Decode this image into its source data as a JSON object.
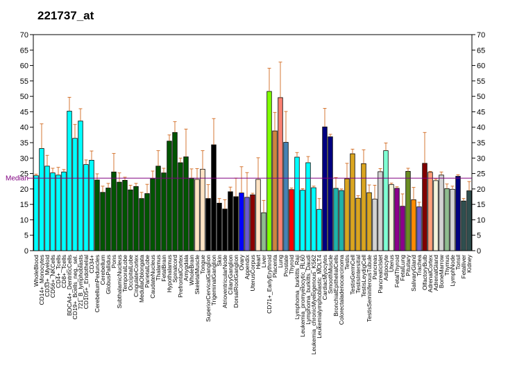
{
  "chart_data": {
    "type": "bar",
    "title": "221737_at",
    "ylim": [
      0,
      70
    ],
    "yticks": [
      0,
      5,
      10,
      15,
      20,
      25,
      30,
      35,
      40,
      45,
      50,
      55,
      60,
      65,
      70
    ],
    "median_label": "Median",
    "median_value": 23.5,
    "median_color": "#800080",
    "grid": false,
    "categories": [
      "WholeBlood",
      "CD14+_Monocytes",
      "CD33+_Myeloid",
      "CD56+_NKCells",
      "CD4+_Tcells",
      "CD8+_Tcells",
      "BDCA4+_DentriticCells",
      "CD19+_Bcells_neg._sel.",
      "721_B_lymphoblasts",
      "CD105+_Endothelial",
      "CD34+",
      "CerebellumPeduncles",
      "Cerebellum",
      "GlobusPallidus",
      "Pons",
      "SubthalamicNucleus",
      "TemporalLobe",
      "OccipitalLobe",
      "CingulateCortex",
      "MedullaOblongata",
      "ParietalLobe",
      "CaudateNucleus",
      "Thalamus",
      "FetalBrain",
      "Hypothalamus",
      "Spinalcord",
      "PrefrontalCortex",
      "Amygdala",
      "WholeBrain",
      "SkeletalMuscle",
      "Tongue",
      "SuperiorCervicalGanglion",
      "TrigeminalGanglion",
      "Skin",
      "AtrioventricularNode",
      "CiliaryGanglion",
      "DorsalRootGanglion",
      "Ovary",
      "Appendix",
      "UterusCorpus",
      "Heart",
      "Liver",
      "CD71+_EarlyErythroid",
      "Placenta",
      "Lung",
      "Prostate",
      "Thyroid",
      "Lymphoma_burkitts_Raji",
      "Leukemia_promyelocytic_HL60",
      "Lymphoma_burkitts_Daudi",
      "Leukemia_chronicMyelogenous_K562",
      "Leukemialymphoblastic_MOLT4",
      "CardiacMyocytes",
      "SmoothMuscle",
      "BronchialEpithelialCells",
      "Colorectaladenocarcinoma",
      "Testis",
      "TestisGermCell",
      "TestisIntersitial",
      "TestisLeydigCell",
      "TestisSeminiferousTubule",
      "Pancreas",
      "PancreaticIslet",
      "Adipocyte",
      "Uterus",
      "FetalThyroid",
      "FetalLung",
      "Pituitary",
      "SalivaryGland",
      "Trachea",
      "OlfactoryBulb",
      "AdrenalCortex",
      "AdrenalGland",
      "BoneMarrow",
      "Thymus",
      "LymphNode",
      "Tonsil",
      "Fetalliver",
      "Kidney"
    ],
    "values": [
      24.3,
      33.1,
      27.4,
      25.2,
      24.5,
      25.5,
      45.2,
      36.4,
      42.0,
      27.9,
      29.3,
      22.9,
      18.9,
      20.3,
      25.5,
      22.2,
      22.8,
      19.7,
      20.8,
      16.9,
      18.5,
      23.3,
      27.4,
      25.2,
      35.5,
      38.3,
      28.5,
      30.4,
      23.5,
      23.1,
      26.4,
      16.9,
      34.3,
      15.4,
      13.5,
      19.1,
      17.5,
      18.7,
      17.3,
      18.1,
      23.1,
      12.3,
      51.6,
      38.8,
      49.6,
      35.1,
      19.8,
      30.3,
      19.6,
      28.5,
      20.4,
      13.4,
      40.1,
      36.9,
      20.2,
      19.5,
      23.3,
      31.4,
      17.0,
      28.2,
      18.8,
      16.7,
      25.6,
      32.4,
      21.4,
      20.2,
      14.4,
      25.7,
      16.5,
      14.2,
      28.3,
      25.4,
      22.7,
      24.5,
      20.1,
      19.9,
      24.1,
      16.1,
      19.4
    ],
    "errors": [
      0.5,
      8.0,
      3.5,
      1.5,
      2.5,
      0.8,
      4.5,
      4.5,
      4.0,
      1.5,
      3.0,
      2.0,
      2.0,
      1.5,
      6.0,
      3.0,
      1.0,
      1.5,
      1.0,
      2.0,
      3.0,
      2.5,
      5.0,
      1.5,
      2.0,
      3.5,
      1.5,
      9.0,
      3.0,
      3.5,
      6.0,
      4.5,
      8.5,
      1.5,
      3.0,
      1.5,
      6.0,
      8.5,
      8.0,
      0.5,
      7.0,
      4.0,
      7.5,
      6.0,
      11.5,
      10.0,
      0.5,
      1.5,
      0.5,
      2.0,
      0.5,
      3.5,
      6.0,
      0.8,
      3.5,
      0.5,
      5.0,
      1.5,
      0.8,
      4.5,
      2.5,
      4.5,
      1.0,
      2.5,
      0.5,
      0.5,
      4.0,
      1.0,
      4.0,
      1.5,
      10.0,
      0.3,
      0.5,
      1.0,
      1.5,
      1.0,
      0.5,
      0.8,
      3.0
    ],
    "colors": [
      "#00ffff",
      "#00ffff",
      "#00ffff",
      "#00ffff",
      "#00ffff",
      "#00ffff",
      "#00ffff",
      "#00ffff",
      "#00ffff",
      "#00ffff",
      "#00ffff",
      "#005500",
      "#005500",
      "#005500",
      "#005500",
      "#005500",
      "#005500",
      "#005500",
      "#005500",
      "#005500",
      "#005500",
      "#005500",
      "#005500",
      "#005500",
      "#005500",
      "#005500",
      "#005500",
      "#005500",
      "#005500",
      "#ffe4c4",
      "#ffe4c4",
      "#000000",
      "#000000",
      "#000000",
      "#000000",
      "#000000",
      "#000000",
      "#0000ff",
      "#6a5acd",
      "#8b0000",
      "#ffe4c4",
      "#8fbc8f",
      "#7fff00",
      "#cd853f",
      "#fa8072",
      "#4682b4",
      "#ff0000",
      "#00ffff",
      "#00ffff",
      "#00ffff",
      "#00ffff",
      "#00ffff",
      "#000080",
      "#000080",
      "#20b2aa",
      "#20b2aa",
      "#daa520",
      "#daa520",
      "#daa520",
      "#daa520",
      "#daa520",
      "#d3d3d3",
      "#d3d3d3",
      "#7fffd4",
      "#f5f5dc",
      "#8b008b",
      "#8b008b",
      "#6b8e23",
      "#ff8c00",
      "#6a5acd",
      "#800000",
      "#ffa07a",
      "#f5f5dc",
      "#d3d3d3",
      "#8fbc8f",
      "#d3d3d3",
      "#000080",
      "#2f4f4f",
      "#2f4f4f"
    ]
  }
}
